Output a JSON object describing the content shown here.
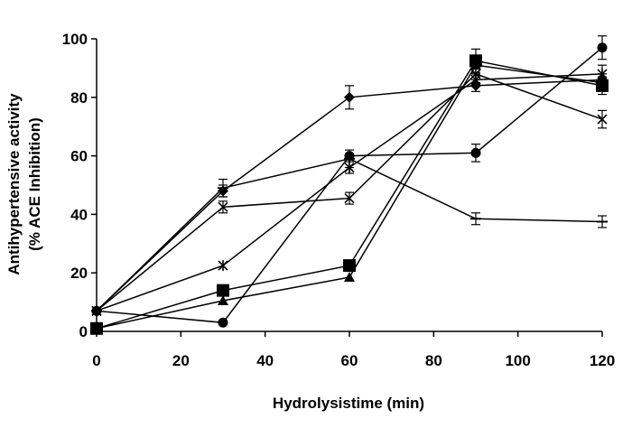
{
  "chart_data": {
    "type": "line",
    "title": "",
    "xlabel": "Hydrolysistime (min)",
    "ylabel_lines": [
      "Antihypertensive activity",
      "(% ACE Inhibition)"
    ],
    "xlim": [
      0,
      120
    ],
    "ylim": [
      0,
      100
    ],
    "xticks": [
      0,
      20,
      40,
      60,
      80,
      100,
      120
    ],
    "yticks": [
      0,
      20,
      40,
      60,
      80,
      100
    ],
    "ytick_labels": [
      "0",
      "20",
      "40",
      "60",
      "80",
      "100"
    ],
    "grid": false,
    "legend": "none",
    "series": [
      {
        "marker": "diamond",
        "x": [
          0,
          30,
          60,
          90,
          120
        ],
        "y": [
          7,
          48,
          80,
          84,
          86
        ],
        "err": [
          0,
          2,
          4,
          2,
          2
        ]
      },
      {
        "marker": "square",
        "x": [
          0,
          30,
          60,
          90,
          120
        ],
        "y": [
          1,
          14,
          22.5,
          92.5,
          84
        ],
        "err": [
          0,
          0,
          0,
          4,
          3
        ]
      },
      {
        "marker": "triangle",
        "x": [
          0,
          30,
          60,
          90,
          120
        ],
        "y": [
          1,
          10.5,
          18.5,
          91,
          85
        ],
        "err": [
          0,
          0,
          0,
          3,
          3
        ]
      },
      {
        "marker": "x",
        "x": [
          0,
          30,
          60,
          90,
          120
        ],
        "y": [
          7,
          42.5,
          45.5,
          88,
          72.5
        ],
        "err": [
          0,
          2,
          2,
          3,
          3
        ]
      },
      {
        "marker": "asterisk",
        "x": [
          0,
          30,
          60,
          90,
          120
        ],
        "y": [
          7,
          22.5,
          56,
          86,
          88
        ],
        "err": [
          0,
          0,
          2,
          2,
          3
        ]
      },
      {
        "marker": "circle",
        "x": [
          0,
          30,
          60,
          90,
          120
        ],
        "y": [
          7,
          3,
          60,
          61,
          97
        ],
        "err": [
          0,
          0,
          0,
          3,
          4
        ]
      },
      {
        "marker": "dash",
        "x": [
          0,
          30,
          60,
          90,
          120
        ],
        "y": [
          7,
          49,
          59,
          38.5,
          37.5
        ],
        "err": [
          0,
          3,
          3,
          2,
          2
        ]
      }
    ]
  }
}
